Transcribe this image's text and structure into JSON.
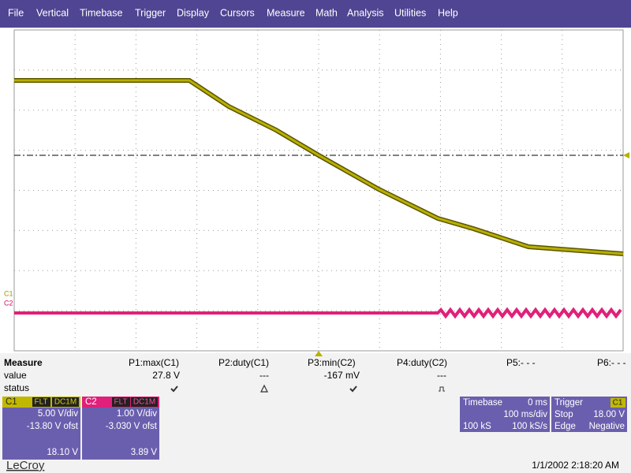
{
  "menu": [
    "File",
    "Vertical",
    "Timebase",
    "Trigger",
    "Display",
    "Cursors",
    "Measure",
    "Math",
    "Analysis",
    "Utilities",
    "Help"
  ],
  "trace_labels": [
    "C1",
    "C2"
  ],
  "measure": {
    "title": "Measure",
    "row_labels": [
      "value",
      "status"
    ],
    "params": [
      "P1:max(C1)",
      "P2:duty(C1)",
      "P3:min(C2)",
      "P4:duty(C2)",
      "P5:- - -",
      "P6:- - -"
    ],
    "values": [
      "27.8 V",
      "---",
      "-167 mV",
      "---"
    ]
  },
  "channels": [
    {
      "name": "C1",
      "coupling": [
        "FLT",
        "DC1M"
      ],
      "scale": "5.00 V/div",
      "offset": "-13.80 V ofst",
      "reading": "18.10 V"
    },
    {
      "name": "C2",
      "coupling": [
        "FLT",
        "DC1M"
      ],
      "scale": "1.00 V/div",
      "offset": "-3.030 V ofst",
      "reading": "3.89 V"
    }
  ],
  "timebase": {
    "title": "Timebase",
    "delay": "0 ms",
    "scale": "100 ms/div",
    "samples": "100 kS",
    "rate": "100 kS/s"
  },
  "trigger": {
    "title": "Trigger",
    "source": "C1",
    "mode": "Stop",
    "level": "18.00 V",
    "type": "Edge",
    "slope": "Negative"
  },
  "footer": {
    "brand": "LeCroy",
    "datetime": "1/1/2002 2:18:20 AM"
  }
}
